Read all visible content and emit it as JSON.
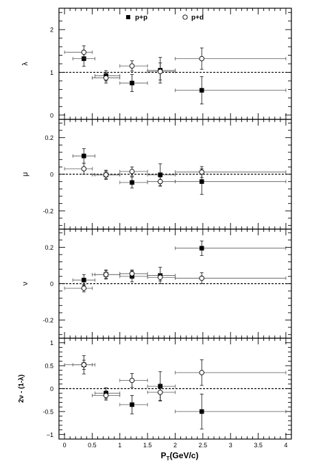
{
  "chart_data": {
    "type": "scatter",
    "xlabel_main": "P",
    "xlabel_sub": "T",
    "xlabel_rest": "(GeV/c)",
    "xlim": [
      -0.1,
      4.1
    ],
    "xticks": [
      0,
      0.5,
      1,
      1.5,
      2,
      2.5,
      3,
      3.5,
      4
    ],
    "xtick_labels": [
      "0",
      "0.5",
      "1",
      "1.5",
      "2",
      "2.5",
      "3",
      "3.5",
      "4"
    ],
    "legend": {
      "position": "top",
      "entries": [
        "p+p",
        "p+d"
      ]
    },
    "panels": [
      {
        "ylabel": "λ",
        "ylim": [
          -0.1,
          2.5
        ],
        "yticks": [
          0,
          1,
          2
        ],
        "ytick_labels": [
          "0",
          "1",
          "2"
        ],
        "reference": 1,
        "series": [
          {
            "name": "p+p",
            "marker": "filled-square",
            "points": [
              {
                "x": 0.35,
                "xl": 0.15,
                "xh": 0.55,
                "y": 1.32,
                "yerr": 0.18
              },
              {
                "x": 0.75,
                "xl": 0.55,
                "xh": 1.0,
                "y": 0.92,
                "yerr": 0.12
              },
              {
                "x": 1.22,
                "xl": 1.0,
                "xh": 1.5,
                "y": 0.75,
                "yerr": 0.2
              },
              {
                "x": 1.73,
                "xl": 1.5,
                "xh": 2.0,
                "y": 1.05,
                "yerr": 0.3
              },
              {
                "x": 2.48,
                "xl": 2.0,
                "xh": 4.0,
                "y": 0.58,
                "yerr": 0.32
              }
            ]
          },
          {
            "name": "p+d",
            "marker": "open-circle",
            "points": [
              {
                "x": 0.35,
                "xl": 0.0,
                "xh": 0.5,
                "y": 1.47,
                "yerr": 0.15
              },
              {
                "x": 0.75,
                "xl": 0.5,
                "xh": 1.0,
                "y": 0.87,
                "yerr": 0.12
              },
              {
                "x": 1.22,
                "xl": 1.0,
                "xh": 1.5,
                "y": 1.15,
                "yerr": 0.12
              },
              {
                "x": 1.73,
                "xl": 1.5,
                "xh": 2.0,
                "y": 1.02,
                "yerr": 0.2
              },
              {
                "x": 2.48,
                "xl": 2.0,
                "xh": 4.0,
                "y": 1.32,
                "yerr": 0.25
              }
            ]
          }
        ]
      },
      {
        "ylabel": "μ",
        "ylim": [
          -0.3,
          0.3
        ],
        "yticks": [
          -0.2,
          0,
          0.2
        ],
        "ytick_labels": [
          "-0.2",
          "0",
          "0.2"
        ],
        "reference": 0,
        "series": [
          {
            "name": "p+p",
            "marker": "filled-square",
            "points": [
              {
                "x": 0.35,
                "xl": 0.15,
                "xh": 0.55,
                "y": 0.1,
                "yerr": 0.04
              },
              {
                "x": 0.75,
                "xl": 0.55,
                "xh": 1.0,
                "y": -0.003,
                "yerr": 0.025
              },
              {
                "x": 1.22,
                "xl": 1.0,
                "xh": 1.5,
                "y": -0.045,
                "yerr": 0.03
              },
              {
                "x": 1.73,
                "xl": 1.5,
                "xh": 2.0,
                "y": -0.003,
                "yerr": 0.06
              },
              {
                "x": 2.48,
                "xl": 2.0,
                "xh": 4.0,
                "y": -0.04,
                "yerr": 0.07
              }
            ]
          },
          {
            "name": "p+d",
            "marker": "open-circle",
            "points": [
              {
                "x": 0.35,
                "xl": 0.0,
                "xh": 0.5,
                "y": 0.03,
                "yerr": 0.03
              },
              {
                "x": 0.75,
                "xl": 0.5,
                "xh": 1.0,
                "y": -0.003,
                "yerr": 0.02
              },
              {
                "x": 1.22,
                "xl": 1.0,
                "xh": 1.5,
                "y": 0.015,
                "yerr": 0.025
              },
              {
                "x": 1.73,
                "xl": 1.5,
                "xh": 2.0,
                "y": -0.04,
                "yerr": 0.025
              },
              {
                "x": 2.48,
                "xl": 2.0,
                "xh": 4.0,
                "y": 0.012,
                "yerr": 0.03
              }
            ]
          }
        ]
      },
      {
        "ylabel": "ν",
        "ylim": [
          -0.3,
          0.3
        ],
        "yticks": [
          -0.2,
          0,
          0.2
        ],
        "ytick_labels": [
          "-0.2",
          "0",
          "0.2"
        ],
        "reference": 0,
        "series": [
          {
            "name": "p+p",
            "marker": "filled-square",
            "points": [
              {
                "x": 0.35,
                "xl": 0.15,
                "xh": 0.55,
                "y": 0.02,
                "yerr": 0.03
              },
              {
                "x": 0.75,
                "xl": 0.55,
                "xh": 1.0,
                "y": 0.05,
                "yerr": 0.025
              },
              {
                "x": 1.22,
                "xl": 1.0,
                "xh": 1.5,
                "y": 0.04,
                "yerr": 0.03
              },
              {
                "x": 1.73,
                "xl": 1.5,
                "xh": 2.0,
                "y": 0.045,
                "yerr": 0.045
              },
              {
                "x": 2.48,
                "xl": 2.0,
                "xh": 4.0,
                "y": 0.195,
                "yerr": 0.04
              }
            ]
          },
          {
            "name": "p+d",
            "marker": "open-circle",
            "points": [
              {
                "x": 0.35,
                "xl": 0.0,
                "xh": 0.5,
                "y": -0.025,
                "yerr": 0.02
              },
              {
                "x": 0.75,
                "xl": 0.5,
                "xh": 1.0,
                "y": 0.05,
                "yerr": 0.02
              },
              {
                "x": 1.22,
                "xl": 1.0,
                "xh": 1.5,
                "y": 0.055,
                "yerr": 0.02
              },
              {
                "x": 1.73,
                "xl": 1.5,
                "xh": 2.0,
                "y": 0.035,
                "yerr": 0.02
              },
              {
                "x": 2.48,
                "xl": 2.0,
                "xh": 4.0,
                "y": 0.03,
                "yerr": 0.03
              }
            ]
          }
        ]
      },
      {
        "ylabel": "2ν - (1-λ)",
        "ylim": [
          -1.1,
          1.1
        ],
        "yticks": [
          -1,
          -0.5,
          0,
          0.5,
          1
        ],
        "ytick_labels": [
          "−1",
          "-0.5",
          "0",
          "0.5",
          "1"
        ],
        "reference": 0,
        "series": [
          {
            "name": "p+p",
            "marker": "filled-square",
            "points": [
              {
                "x": 0.35,
                "xl": 0.15,
                "xh": 0.55,
                "y": 0.52,
                "yerr": 0.2
              },
              {
                "x": 0.75,
                "xl": 0.55,
                "xh": 1.0,
                "y": -0.1,
                "yerr": 0.12
              },
              {
                "x": 1.22,
                "xl": 1.0,
                "xh": 1.5,
                "y": -0.35,
                "yerr": 0.2
              },
              {
                "x": 1.73,
                "xl": 1.5,
                "xh": 2.0,
                "y": 0.05,
                "yerr": 0.32
              },
              {
                "x": 2.48,
                "xl": 2.0,
                "xh": 4.0,
                "y": -0.5,
                "yerr": 0.38
              }
            ]
          },
          {
            "name": "p+d",
            "marker": "open-circle",
            "points": [
              {
                "x": 0.35,
                "xl": 0.0,
                "xh": 0.5,
                "y": 0.52,
                "yerr": 0.1
              },
              {
                "x": 0.75,
                "xl": 0.5,
                "xh": 1.0,
                "y": -0.15,
                "yerr": 0.1
              },
              {
                "x": 1.22,
                "xl": 1.0,
                "xh": 1.5,
                "y": 0.18,
                "yerr": 0.15
              },
              {
                "x": 1.73,
                "xl": 1.5,
                "xh": 2.0,
                "y": -0.08,
                "yerr": 0.18
              },
              {
                "x": 2.48,
                "xl": 2.0,
                "xh": 4.0,
                "y": 0.35,
                "yerr": 0.28
              }
            ]
          }
        ]
      }
    ]
  }
}
